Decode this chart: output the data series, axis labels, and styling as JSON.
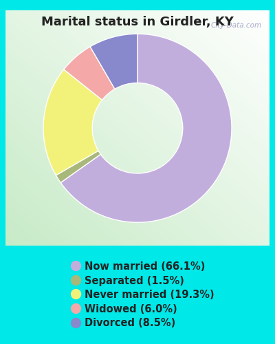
{
  "title": "Marital status in Girdler, KY",
  "slices": [
    {
      "label": "Now married (66.1%)",
      "value": 66.1,
      "color": "#c2aedd"
    },
    {
      "label": "Separated (1.5%)",
      "value": 1.5,
      "color": "#a8b87a"
    },
    {
      "label": "Never married (19.3%)",
      "value": 19.3,
      "color": "#f2f27a"
    },
    {
      "label": "Widowed (6.0%)",
      "value": 6.0,
      "color": "#f4a8a8"
    },
    {
      "label": "Divorced (8.5%)",
      "value": 8.5,
      "color": "#8888cc"
    }
  ],
  "bg_outer": "#00e8e8",
  "title_color": "#222222",
  "title_fontsize": 13,
  "legend_fontsize": 10.5,
  "watermark": "City-Data.com",
  "donut_width": 0.52,
  "start_angle": 90
}
